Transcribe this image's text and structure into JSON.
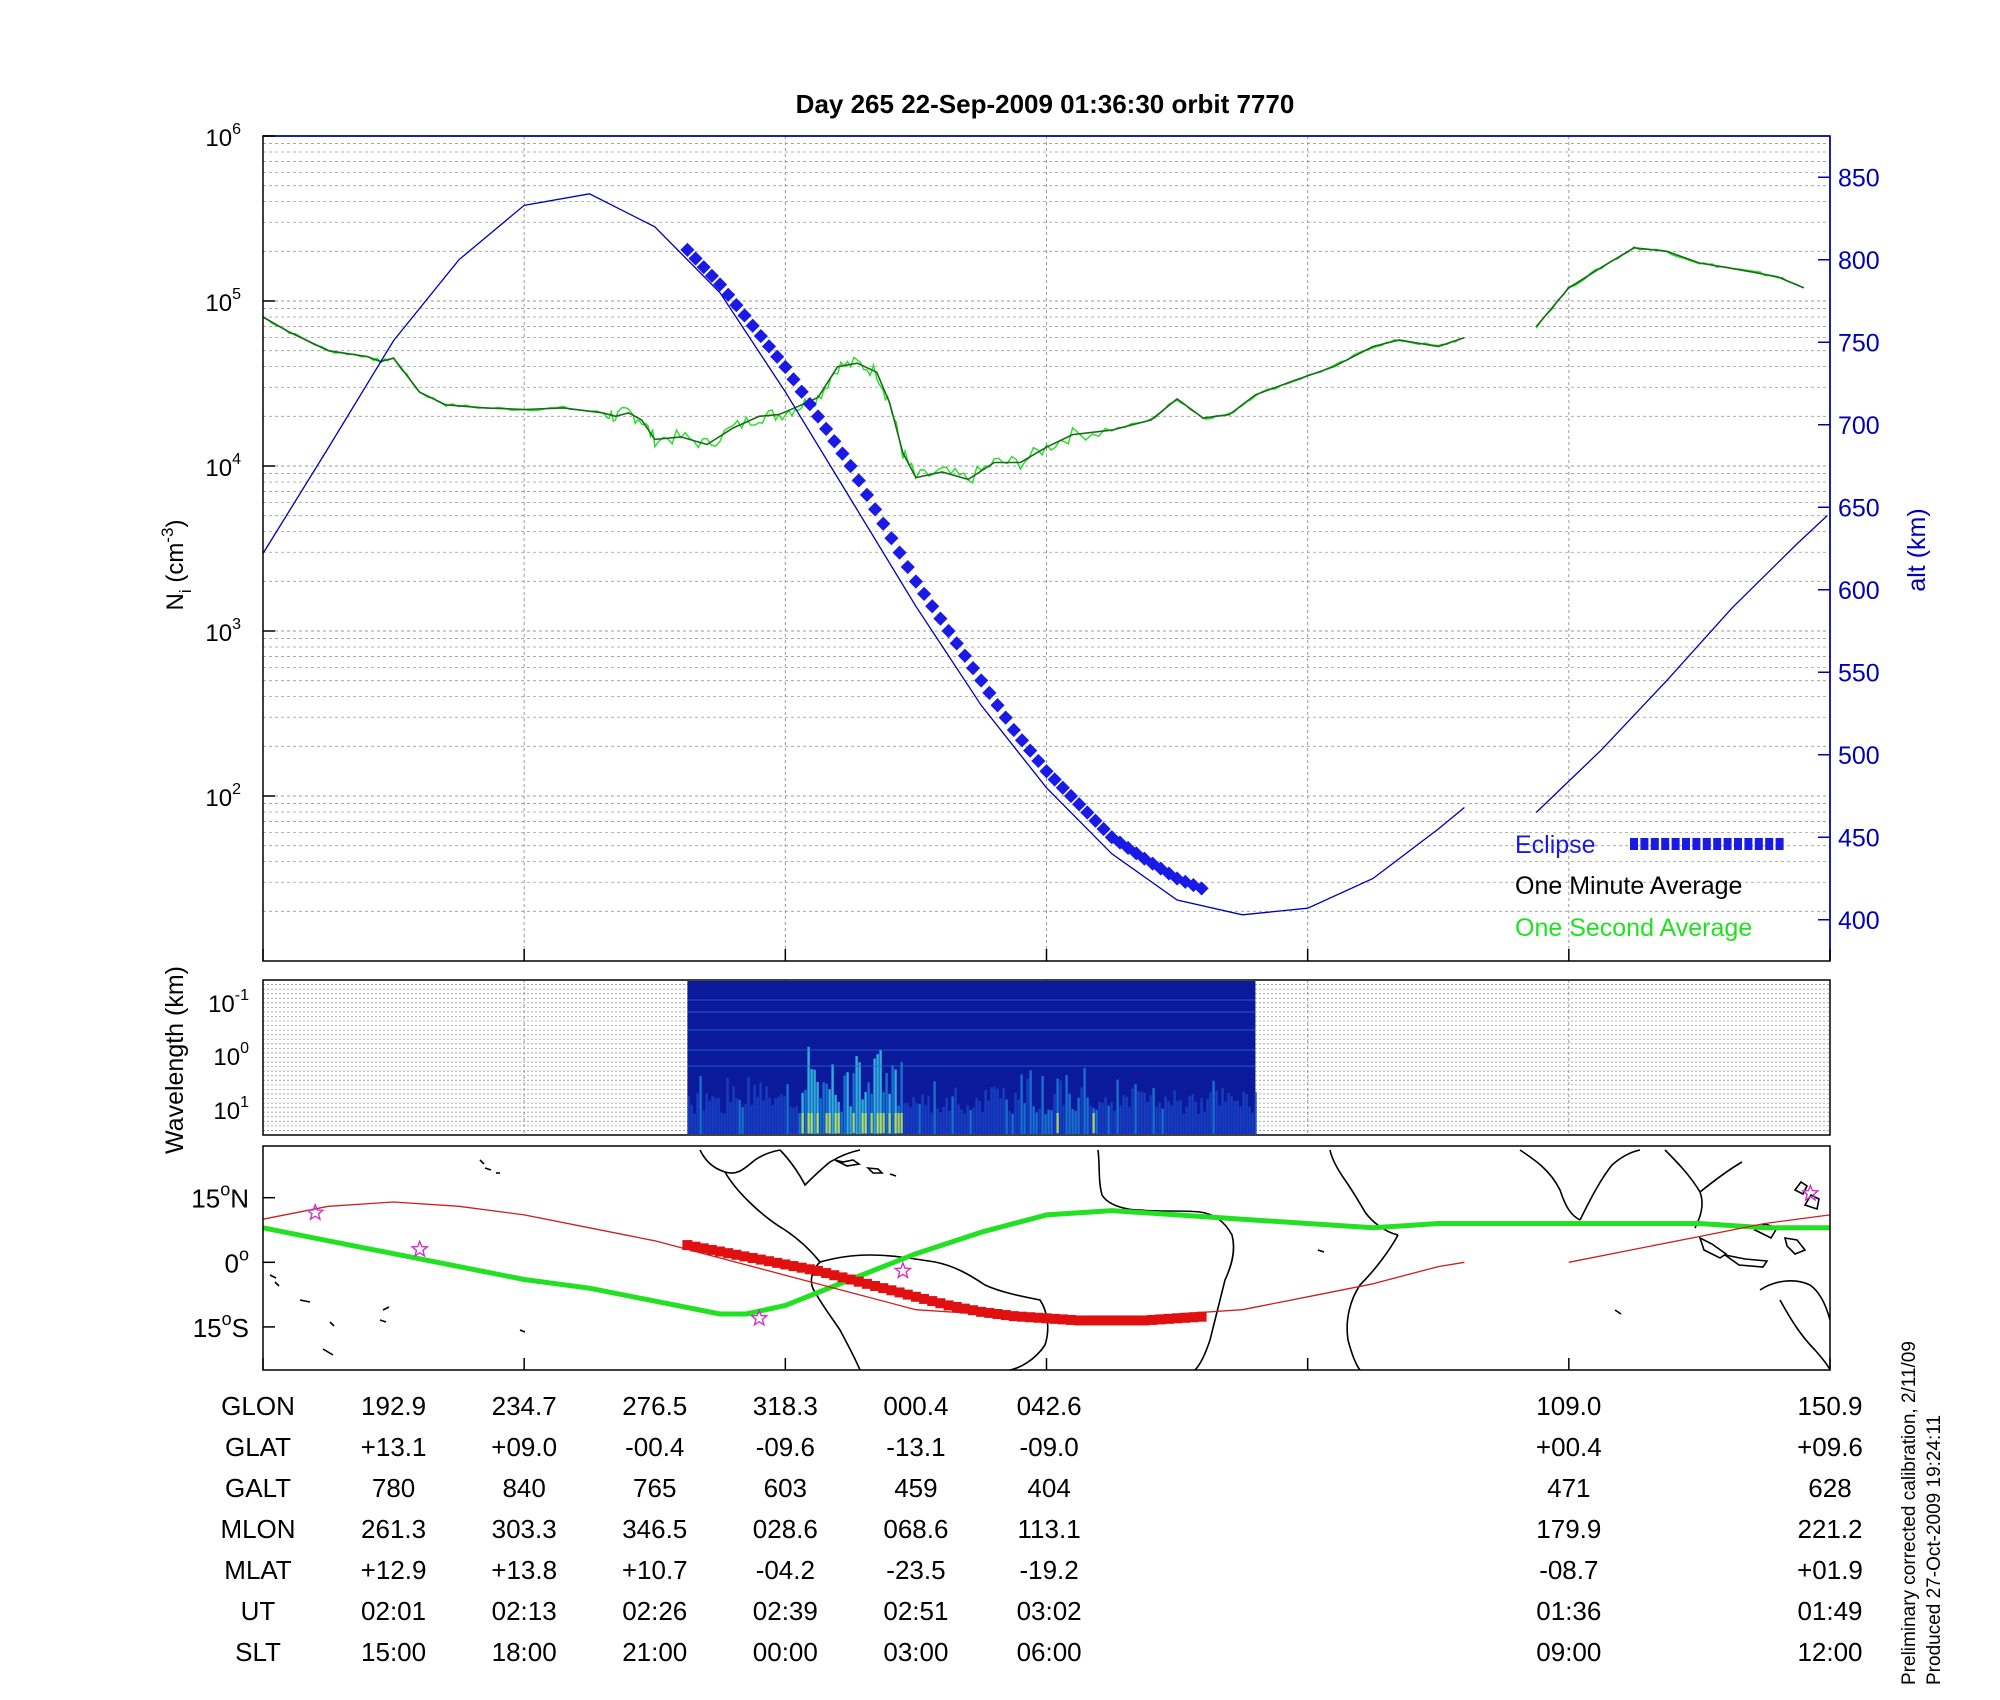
{
  "chart_data": [
    {
      "type": "line",
      "title": "Day 265  22-Sep-2009 01:36:30   orbit 7770",
      "ylabel": "N",
      "ylabel_sub": "i",
      "ylabel_unit": "(cm",
      "ylabel_unit_sup": "-3",
      "ylabel_close": ")",
      "y_log_ticks": [
        {
          "base": "10",
          "exp": "2",
          "value": 100
        },
        {
          "base": "10",
          "exp": "3",
          "value": 1000
        },
        {
          "base": "10",
          "exp": "4",
          "value": 10000
        },
        {
          "base": "10",
          "exp": "5",
          "value": 100000
        },
        {
          "base": "10",
          "exp": "6",
          "value": 1000000
        }
      ],
      "ylim_log": [
        10,
        1000000
      ],
      "y2label": "alt (km)",
      "y2_ticks": [
        400,
        450,
        500,
        550,
        600,
        650,
        700,
        750,
        800,
        850
      ],
      "y2lim": [
        375,
        875
      ],
      "grid": true,
      "legend": {
        "placement": "bottom-right",
        "entries": [
          {
            "label": "Eclipse",
            "color": "#1a1ae6"
          },
          {
            "label": "One Minute Average",
            "color": "#000000"
          },
          {
            "label": "One Second Average",
            "color": "#22e022"
          }
        ]
      },
      "series": [
        {
          "name": "One Minute Average",
          "color": "#1a6a1a",
          "x": [
            0,
            0.2,
            0.5,
            0.8,
            0.9,
            1.0,
            1.2,
            1.4,
            1.7,
            2.0,
            2.3,
            2.6,
            2.7,
            2.8,
            2.9,
            3.0,
            3.2,
            3.4,
            3.6,
            3.8,
            3.95,
            4.1,
            4.25,
            4.4,
            4.55,
            4.7,
            4.8,
            4.9,
            5.0,
            5.2,
            5.4,
            5.6,
            5.8,
            6.0,
            6.2,
            6.5,
            6.8,
            7.0,
            7.2,
            7.4,
            7.6,
            7.9,
            8.2,
            8.5,
            8.7,
            9.0,
            9.2
          ],
          "y": [
            80000,
            65000,
            50000,
            46000,
            43000,
            45000,
            28000,
            23500,
            22500,
            22000,
            22500,
            21000,
            20000,
            21000,
            19000,
            14500,
            15000,
            13500,
            17000,
            20000,
            20500,
            23000,
            26000,
            40000,
            42000,
            37000,
            24000,
            12000,
            8500,
            9200,
            8300,
            10500,
            10500,
            13000,
            15500,
            16500,
            19000,
            25500,
            19500,
            20500,
            27000,
            33000,
            40000,
            53000,
            58000,
            53000,
            60000
          ]
        },
        {
          "name": "One Minute Average (late pass)",
          "color": "#1a6a1a",
          "x": [
            9.75,
            10.0,
            10.25,
            10.5,
            10.75,
            11.0,
            11.2,
            11.4,
            11.6,
            11.8
          ],
          "y": [
            70000,
            120000,
            160000,
            210000,
            200000,
            170000,
            160000,
            150000,
            140000,
            120000
          ]
        },
        {
          "name": "alt (km)",
          "color": "#0000b4",
          "x_alt": [
            0,
            0.5,
            1.0,
            1.5,
            2.0,
            2.5,
            3.0,
            3.5,
            4.0,
            4.5,
            5.0,
            5.5,
            6.0,
            6.5,
            7.0,
            7.5,
            8.0,
            8.5,
            9.0,
            9.2
          ],
          "y_alt": [
            622,
            686,
            751,
            800,
            833,
            840,
            820,
            780,
            720,
            655,
            590,
            530,
            480,
            440,
            412,
            403,
            407,
            425,
            455,
            468
          ]
        },
        {
          "name": "alt (km) late pass",
          "color": "#0000b4",
          "x_alt": [
            9.75,
            10.25,
            10.75,
            11.25,
            11.75,
            11.98
          ],
          "y_alt": [
            465,
            503,
            545,
            589,
            628,
            645
          ]
        },
        {
          "name": "Eclipse",
          "color": "#1a1ae6",
          "x_alt": [
            3.25,
            3.5,
            3.75,
            4.0,
            4.25,
            4.5,
            4.75,
            5.0,
            5.25,
            5.5,
            5.75,
            6.0,
            6.25,
            6.5,
            6.75,
            7.0,
            7.25
          ],
          "y_alt": [
            806,
            785,
            760,
            735,
            705,
            675,
            640,
            605,
            575,
            545,
            515,
            490,
            470,
            450,
            437,
            425,
            417
          ]
        }
      ]
    },
    {
      "type": "heatmap",
      "ylabel": "Wavelength (km)",
      "y_log_ticks": [
        {
          "base": "10",
          "exp": "-1"
        },
        {
          "base": "10",
          "exp": "0"
        },
        {
          "base": "10",
          "exp": "1"
        }
      ],
      "grid": true
    },
    {
      "type": "line",
      "y_ticks": [
        {
          "value": 15,
          "label": "15",
          "suffix": "N"
        },
        {
          "value": 0,
          "label": "0",
          "suffix": ""
        },
        {
          "value": -15,
          "label": "15",
          "suffix": "S"
        }
      ],
      "ylim": [
        -25,
        27
      ],
      "series": [
        {
          "name": "GLAT track",
          "color": "#22e022",
          "x": [
            0,
            0.5,
            1.0,
            1.5,
            2.0,
            2.5,
            3.0,
            3.5,
            3.7,
            4.0,
            4.5,
            5.0,
            5.5,
            6.0,
            6.5,
            7.0,
            7.5,
            8.0,
            8.5,
            9.0,
            9.5,
            10.0,
            10.5,
            11.0,
            11.5,
            12.0
          ],
          "y": [
            8,
            5,
            2,
            -1,
            -4,
            -6,
            -9,
            -12,
            -12,
            -10,
            -4,
            2,
            7,
            11,
            12,
            11,
            10,
            9,
            8,
            9,
            9,
            9,
            9,
            9,
            8,
            8
          ]
        },
        {
          "name": "magnetic equator track",
          "color": "#cc2020",
          "x": [
            0,
            0.5,
            1.0,
            1.5,
            2.0,
            2.5,
            3.0,
            3.5,
            4.0,
            4.5,
            5.0,
            5.5,
            6.0,
            6.5,
            7.0,
            7.5,
            8.0,
            8.5,
            9.0,
            9.2
          ],
          "y": [
            10,
            13,
            14,
            13,
            11,
            8,
            5,
            1,
            -3,
            -7,
            -11,
            -12,
            -13,
            -13,
            -12,
            -11,
            -8,
            -5,
            -1,
            0
          ]
        },
        {
          "name": "magnetic equator track late pass",
          "color": "#cc2020",
          "x": [
            10.0,
            10.5,
            11.0,
            11.5,
            12.0
          ],
          "y": [
            0,
            3,
            6,
            9,
            11
          ]
        },
        {
          "name": "Eclipse",
          "color": "#e01010",
          "x": [
            3.25,
            3.5,
            3.75,
            4.0,
            4.25,
            4.5,
            4.75,
            5.0,
            5.25,
            5.5,
            5.75,
            6.0,
            6.25,
            6.5,
            6.75,
            7.0,
            7.25
          ],
          "y": [
            4,
            2.5,
            1,
            -0.5,
            -2,
            -4,
            -6,
            -8,
            -10,
            -11.5,
            -12.5,
            -13,
            -13.5,
            -13.5,
            -13.5,
            -13,
            -12.5
          ]
        }
      ],
      "stars": [
        {
          "x": 0.4,
          "y": 11.5
        },
        {
          "x": 1.2,
          "y": 3
        },
        {
          "x": 3.8,
          "y": -13
        },
        {
          "x": 4.9,
          "y": -2
        },
        {
          "x": 11.85,
          "y": 16
        }
      ]
    }
  ],
  "table": {
    "rows": [
      {
        "label": "GLON",
        "values": [
          "192.9",
          "234.7",
          "276.5",
          "318.3",
          "000.4",
          "042.6",
          "109.0",
          "150.9"
        ]
      },
      {
        "label": "GLAT",
        "values": [
          "+13.1",
          "+09.0",
          "-00.4",
          "-09.6",
          "-13.1",
          "-09.0",
          "+00.4",
          "+09.6"
        ]
      },
      {
        "label": "GALT",
        "values": [
          "780",
          "840",
          "765",
          "603",
          "459",
          "404",
          "471",
          "628"
        ]
      },
      {
        "label": "MLON",
        "values": [
          "261.3",
          "303.3",
          "346.5",
          "028.6",
          "068.6",
          "113.1",
          "179.9",
          "221.2"
        ]
      },
      {
        "label": "MLAT",
        "values": [
          "+12.9",
          "+13.8",
          "+10.7",
          "-04.2",
          "-23.5",
          "-19.2",
          "-08.7",
          "+01.9"
        ]
      },
      {
        "label": "UT",
        "values": [
          "02:01",
          "02:13",
          "02:26",
          "02:39",
          "02:51",
          "03:02",
          "01:36",
          "01:49"
        ]
      },
      {
        "label": "SLT",
        "values": [
          "15:00",
          "18:00",
          "21:00",
          "00:00",
          "03:00",
          "06:00",
          "09:00",
          "12:00"
        ]
      }
    ]
  },
  "footnote": {
    "line1": "Preliminary corrected calibration, 2/11/09",
    "line2": "Produced 27-Oct-2009 19:24:11"
  },
  "colors": {
    "axis": "#000000",
    "alt_axis": "#0000b4",
    "grid": "#9a9a9a",
    "minute_avg": "#1a6a1a",
    "second_avg": "#22e022",
    "eclipse": "#1a1ae6",
    "eclipse_map": "#e01010",
    "mag_equator": "#cc2020",
    "star": "#cc33cc",
    "spectrogram_bg": "#0a1a9a"
  }
}
